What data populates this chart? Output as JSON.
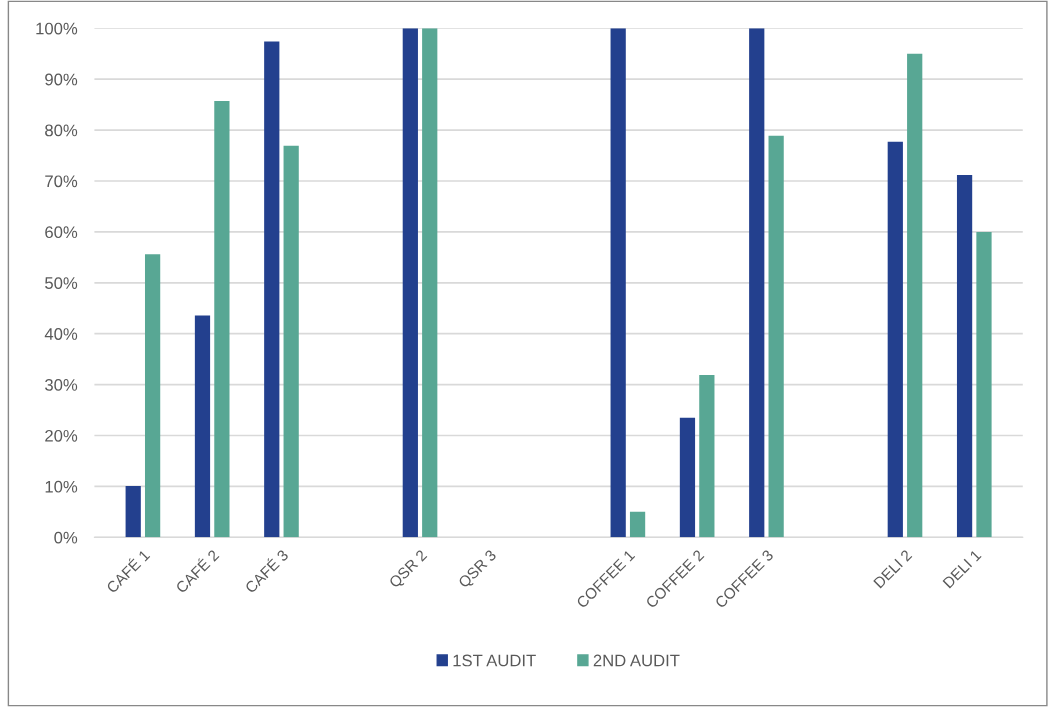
{
  "chart_data": {
    "type": "bar",
    "categories": [
      "CAFÉ 1",
      "CAFÉ 2",
      "CAFÉ 3",
      null,
      "QSR 2",
      "QSR 3",
      null,
      "COFFEE 1",
      "COFFEE 2",
      "COFFEE 3",
      null,
      "DELI 2",
      "DELI 1"
    ],
    "series": [
      {
        "name": "1ST AUDIT",
        "color": "#23408e",
        "values": [
          10.1,
          43.6,
          97.4,
          null,
          100,
          0,
          null,
          100,
          23.5,
          100,
          null,
          77.7,
          71.2
        ]
      },
      {
        "name": "2ND AUDIT",
        "color": "#58a794",
        "values": [
          55.6,
          85.7,
          76.9,
          null,
          100,
          0,
          null,
          5.0,
          31.9,
          78.9,
          null,
          95.0,
          60.0
        ]
      }
    ],
    "ylim": [
      0,
      100
    ],
    "yticks": [
      {
        "value": 0,
        "label": "0%"
      },
      {
        "value": 10,
        "label": "10%"
      },
      {
        "value": 20,
        "label": "20%"
      },
      {
        "value": 30,
        "label": "30%"
      },
      {
        "value": 40,
        "label": "40%"
      },
      {
        "value": 50,
        "label": "50%"
      },
      {
        "value": 60,
        "label": "60%"
      },
      {
        "value": 70,
        "label": "70%"
      },
      {
        "value": 80,
        "label": "80%"
      },
      {
        "value": 90,
        "label": "90%"
      },
      {
        "value": 100,
        "label": "100%"
      }
    ],
    "grid": "y",
    "legend": "bottom"
  }
}
